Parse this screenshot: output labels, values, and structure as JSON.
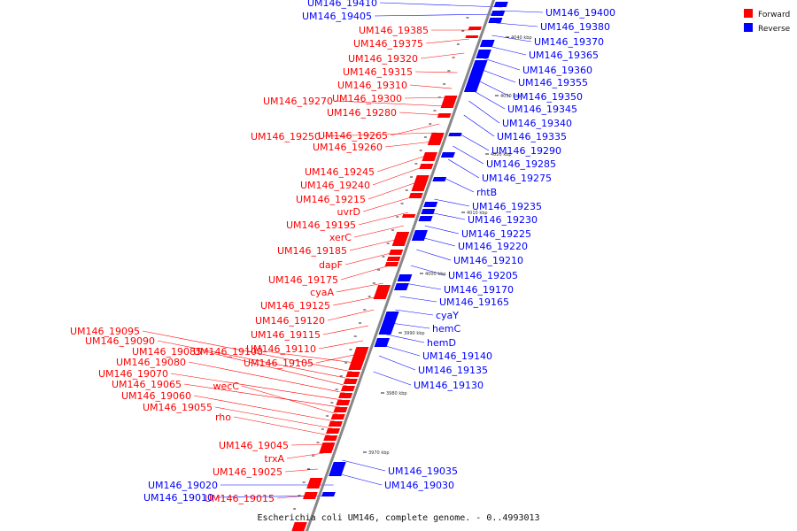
{
  "caption": "Escherichia coli UM146, complete genome. - 0..4993013",
  "legend": {
    "items": [
      {
        "label": "Forward",
        "color": "#ff0000"
      },
      {
        "label": "Reverse",
        "color": "#0000ff"
      }
    ]
  },
  "colors": {
    "forward": "#ff0000",
    "reverse": "#0000ff",
    "backbone": "#888888"
  },
  "ticks": [
    "4040 kbp",
    "4030 kbp",
    "4020 kbp",
    "4010 kbp",
    "4000 kbp",
    "3990 kbp",
    "3980 kbp",
    "3970 kbp"
  ],
  "forward_labels": [
    "UM146_19385",
    "UM146_19375",
    "UM146_19320",
    "UM146_19315",
    "UM146_19310",
    "UM146_19300",
    "UM146_19270",
    "UM146_19280",
    "UM146_19265",
    "UM146_19250",
    "UM146_19260",
    "UM146_19245",
    "UM146_19240",
    "UM146_19215",
    "uvrD",
    "UM146_19195",
    "xerC",
    "UM146_19185",
    "dapF",
    "UM146_19175",
    "cyaA",
    "UM146_19125",
    "UM146_19120",
    "UM146_19115",
    "UM146_19110",
    "UM146_19105",
    "UM146_19100",
    "UM146_19095",
    "UM146_19090",
    "UM146_19085",
    "UM146_19080",
    "UM146_19070",
    "UM146_19065",
    "wecC",
    "UM146_19060",
    "UM146_19055",
    "rho",
    "UM146_19045",
    "trxA",
    "UM146_19025",
    "UM146_19015"
  ],
  "reverse_labels": [
    "UM146_19410",
    "UM146_19405",
    "UM146_19400",
    "UM146_19380",
    "UM146_19370",
    "UM146_19365",
    "UM146_19360",
    "UM146_19355",
    "UM146_19350",
    "UM146_19345",
    "UM146_19340",
    "UM146_19335",
    "UM146_19290",
    "UM146_19285",
    "UM146_19275",
    "rhtB",
    "UM146_19235",
    "UM146_19230",
    "UM146_19225",
    "UM146_19220",
    "UM146_19210",
    "UM146_19205",
    "UM146_19170",
    "UM146_19165",
    "cyaY",
    "hemC",
    "hemD",
    "UM146_19140",
    "UM146_19135",
    "UM146_19130",
    "UM146_19035",
    "UM146_19030",
    "UM146_19020",
    "UM146_19010"
  ]
}
